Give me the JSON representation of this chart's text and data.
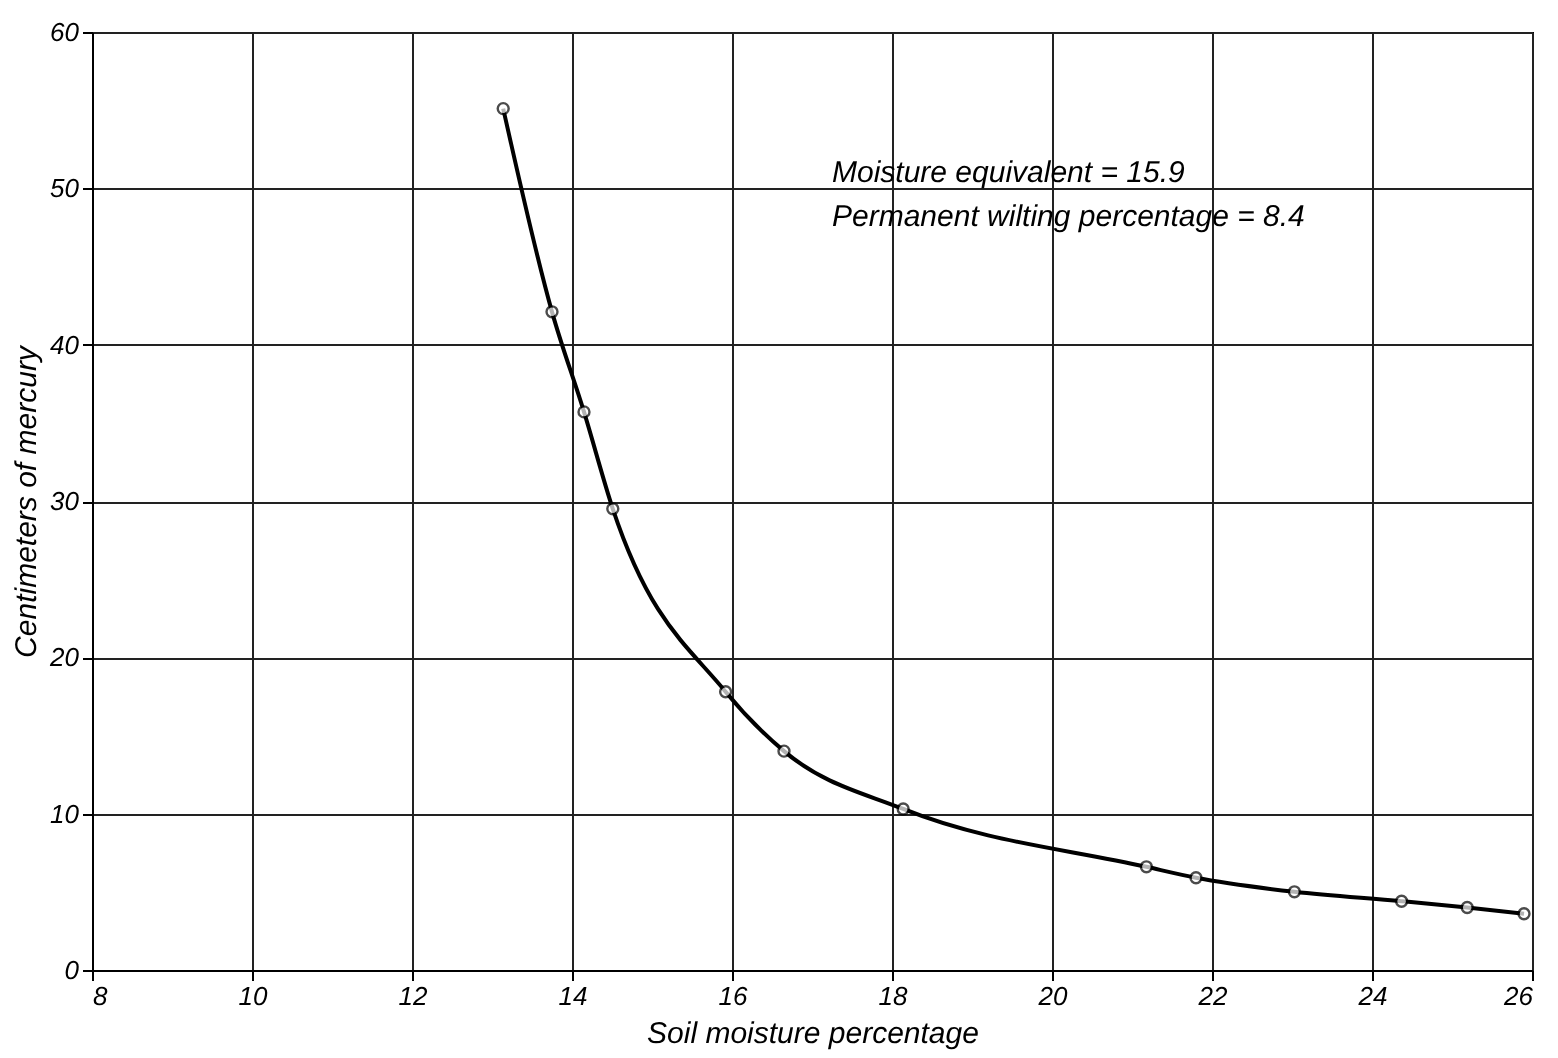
{
  "chart_data": {
    "type": "line",
    "xlabel": "Soil moisture percentage",
    "ylabel": "Centimeters of mercury",
    "xlim": [
      8,
      26
    ],
    "xticks": [
      8,
      10,
      12,
      14,
      16,
      18,
      20,
      22,
      24,
      26
    ],
    "ylim": [
      0,
      60
    ],
    "yticks": [
      0,
      10,
      20,
      30,
      40,
      50,
      60
    ],
    "grid": true,
    "marker": "circle",
    "line_style": "solid",
    "series": [
      {
        "color": "#000000",
        "x": [
          13.14,
          13.75,
          14.15,
          14.51,
          15.92,
          16.65,
          18.14,
          21.18,
          21.8,
          23.03,
          24.37,
          25.19,
          25.9
        ],
        "values": [
          55.1,
          42.1,
          35.7,
          29.5,
          17.8,
          14.0,
          10.3,
          6.6,
          5.9,
          5.0,
          4.4,
          4.0,
          3.6
        ]
      }
    ],
    "annotations": [
      "Moisture equivalent = 15.9",
      "Permanent wilting percentage = 8.4"
    ]
  }
}
